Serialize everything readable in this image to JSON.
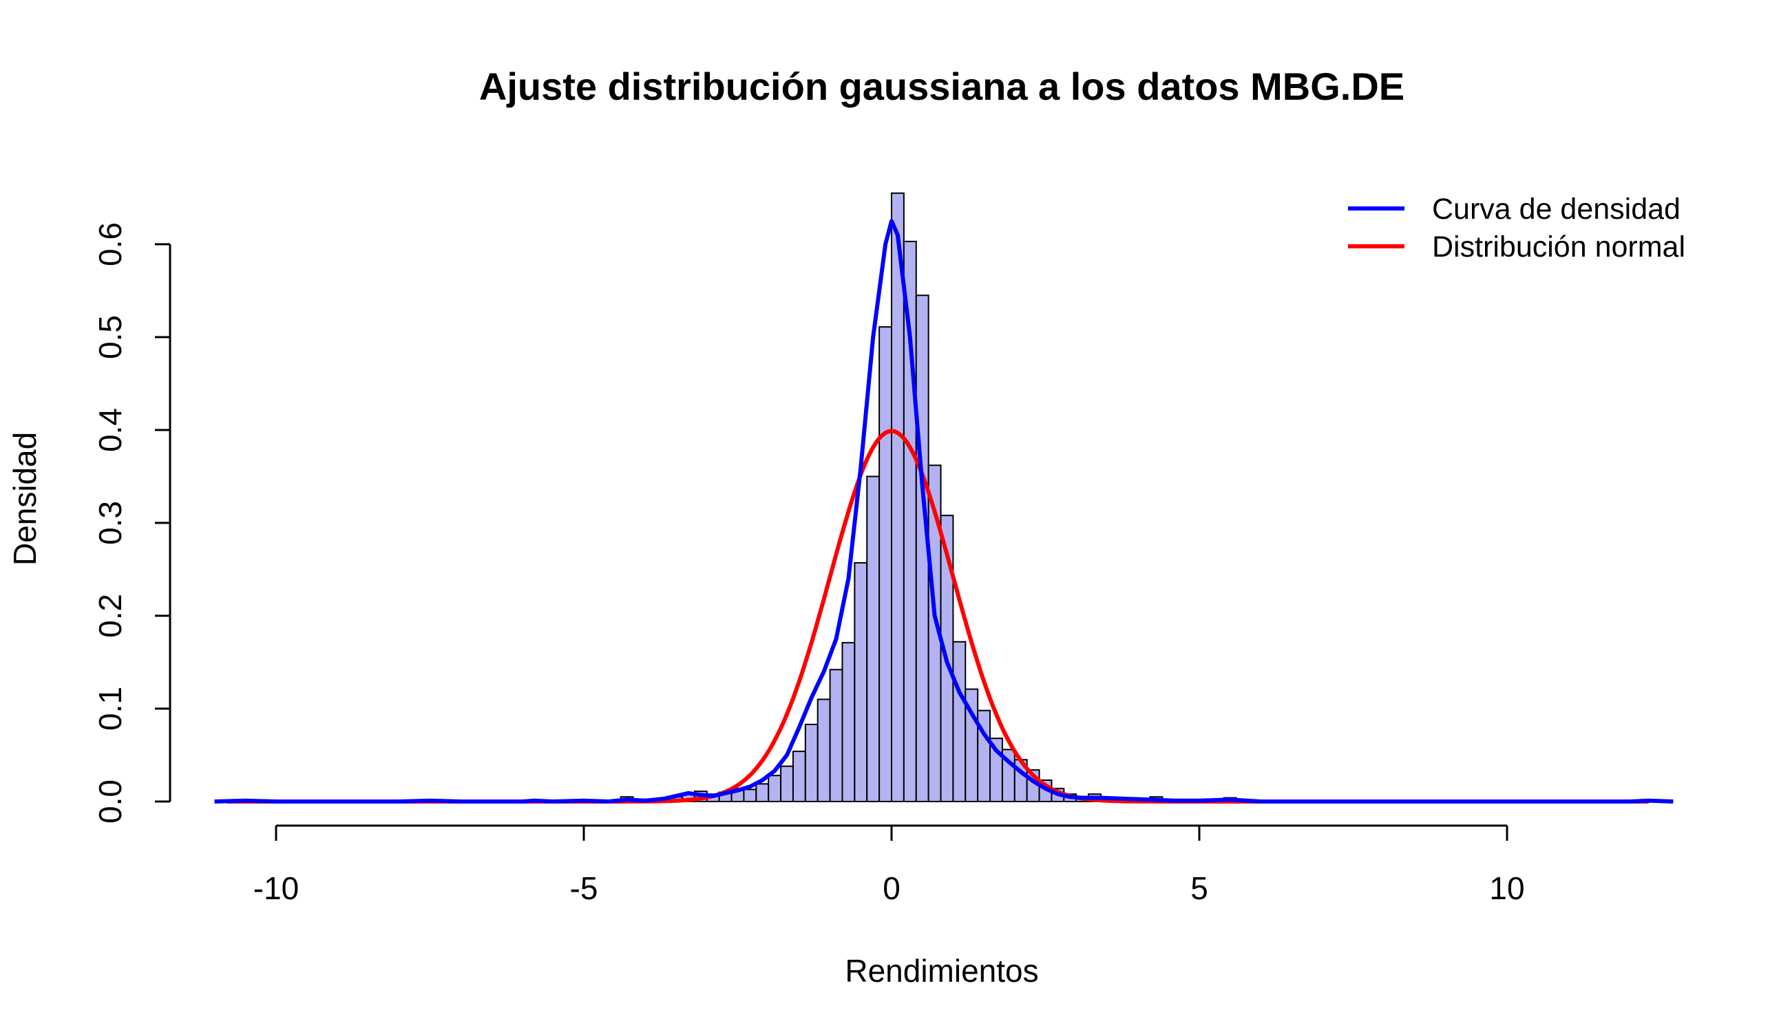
{
  "chart_data": {
    "type": "bar",
    "title": "Ajuste distribución gaussiana a los datos MBG.DE",
    "xlabel": "Rendimientos",
    "ylabel": "Densidad",
    "xlim": [
      -12,
      13
    ],
    "ylim": [
      0,
      0.65
    ],
    "x_ticks": [
      -10,
      -5,
      0,
      5,
      10
    ],
    "x_tick_labels": [
      "-10",
      "-5",
      "0",
      "5",
      "10"
    ],
    "y_ticks": [
      0,
      0.1,
      0.2,
      0.3,
      0.4,
      0.5,
      0.6
    ],
    "y_tick_labels": [
      "0.0",
      "0.1",
      "0.2",
      "0.3",
      "0.4",
      "0.5",
      "0.6"
    ],
    "grid": false,
    "legend_position": "top-right",
    "colors": {
      "bar_fill": "#b3b3f2",
      "bar_stroke": "#000000",
      "density": "#0000ff",
      "normal": "#ff0000"
    },
    "histogram": {
      "bin_width": 0.2,
      "bins": [
        {
          "x0": -4.4,
          "density": 0.005
        },
        {
          "x0": -3.8,
          "density": 0.003
        },
        {
          "x0": -3.6,
          "density": 0.005
        },
        {
          "x0": -3.4,
          "density": 0.008
        },
        {
          "x0": -3.2,
          "density": 0.011
        },
        {
          "x0": -3.0,
          "density": 0.008
        },
        {
          "x0": -2.8,
          "density": 0.01
        },
        {
          "x0": -2.6,
          "density": 0.014
        },
        {
          "x0": -2.4,
          "density": 0.013
        },
        {
          "x0": -2.2,
          "density": 0.019
        },
        {
          "x0": -2.0,
          "density": 0.028
        },
        {
          "x0": -1.8,
          "density": 0.038
        },
        {
          "x0": -1.6,
          "density": 0.054
        },
        {
          "x0": -1.4,
          "density": 0.083
        },
        {
          "x0": -1.2,
          "density": 0.11
        },
        {
          "x0": -1.0,
          "density": 0.142
        },
        {
          "x0": -0.8,
          "density": 0.171
        },
        {
          "x0": -0.6,
          "density": 0.257
        },
        {
          "x0": -0.4,
          "density": 0.35
        },
        {
          "x0": -0.2,
          "density": 0.511
        },
        {
          "x0": 0.0,
          "density": 0.655
        },
        {
          "x0": 0.2,
          "density": 0.603
        },
        {
          "x0": 0.4,
          "density": 0.545
        },
        {
          "x0": 0.6,
          "density": 0.362
        },
        {
          "x0": 0.8,
          "density": 0.308
        },
        {
          "x0": 1.0,
          "density": 0.172
        },
        {
          "x0": 1.2,
          "density": 0.121
        },
        {
          "x0": 1.4,
          "density": 0.098
        },
        {
          "x0": 1.6,
          "density": 0.068
        },
        {
          "x0": 1.8,
          "density": 0.056
        },
        {
          "x0": 2.0,
          "density": 0.045
        },
        {
          "x0": 2.2,
          "density": 0.034
        },
        {
          "x0": 2.4,
          "density": 0.023
        },
        {
          "x0": 2.6,
          "density": 0.014
        },
        {
          "x0": 2.8,
          "density": 0.008
        },
        {
          "x0": 3.0,
          "density": 0.005
        },
        {
          "x0": 3.2,
          "density": 0.008
        },
        {
          "x0": 3.4,
          "density": 0.004
        },
        {
          "x0": 3.8,
          "density": 0.004
        },
        {
          "x0": 4.2,
          "density": 0.005
        },
        {
          "x0": 5.4,
          "density": 0.004
        }
      ]
    },
    "series": [
      {
        "name": "Curva de densidad",
        "color": "#0000ff",
        "x": [
          -11.0,
          -10.5,
          -10.0,
          -9.0,
          -8.0,
          -7.5,
          -7.0,
          -6.0,
          -5.8,
          -5.5,
          -5.0,
          -4.6,
          -4.3,
          -4.0,
          -3.7,
          -3.5,
          -3.3,
          -3.1,
          -2.9,
          -2.7,
          -2.5,
          -2.3,
          -2.1,
          -1.9,
          -1.7,
          -1.5,
          -1.3,
          -1.1,
          -0.9,
          -0.7,
          -0.5,
          -0.3,
          -0.1,
          0.0,
          0.1,
          0.3,
          0.5,
          0.7,
          0.9,
          1.1,
          1.3,
          1.5,
          1.7,
          1.9,
          2.1,
          2.3,
          2.5,
          2.7,
          2.9,
          3.1,
          3.4,
          3.8,
          4.2,
          4.6,
          5.0,
          5.5,
          6.0,
          7.0,
          8.0,
          9.0,
          10.0,
          11.0,
          12.0,
          12.3,
          12.7
        ],
        "y": [
          0.0,
          0.001,
          0.0,
          0.0,
          0.0,
          0.001,
          0.0,
          0.0,
          0.001,
          0.0,
          0.001,
          0.0,
          0.002,
          0.001,
          0.003,
          0.006,
          0.009,
          0.007,
          0.006,
          0.009,
          0.012,
          0.016,
          0.023,
          0.033,
          0.05,
          0.08,
          0.112,
          0.14,
          0.175,
          0.24,
          0.36,
          0.5,
          0.6,
          0.625,
          0.61,
          0.5,
          0.34,
          0.2,
          0.15,
          0.118,
          0.095,
          0.073,
          0.055,
          0.043,
          0.032,
          0.022,
          0.014,
          0.008,
          0.005,
          0.004,
          0.004,
          0.003,
          0.002,
          0.001,
          0.001,
          0.002,
          0.0,
          0.0,
          0.0,
          0.0,
          0.0,
          0.0,
          0.0,
          0.001,
          0.0
        ]
      },
      {
        "name": "Distribución normal",
        "color": "#ff0000",
        "mean": 0.0,
        "sd": 1.0,
        "x_range": [
          -10.8,
          12.3
        ]
      }
    ]
  }
}
